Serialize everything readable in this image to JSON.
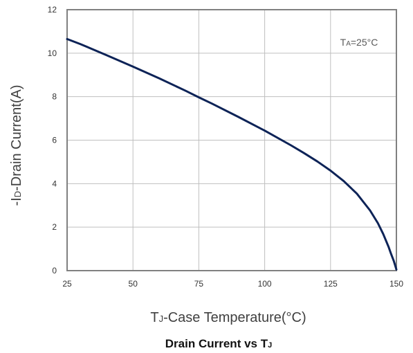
{
  "chart_data": {
    "type": "line",
    "title": "Drain Current vs T",
    "title_sub": "J",
    "xlabel": {
      "main": "T",
      "sub": "J",
      "rest": "-Case Temperature(°C)"
    },
    "ylabel": {
      "pre": "-I",
      "sub": "D",
      "rest": "-Drain Current(A)"
    },
    "annotation": {
      "main": "T",
      "sub": "A",
      "rest": "=25°C"
    },
    "xlim": [
      25,
      150
    ],
    "ylim": [
      0,
      12
    ],
    "x_ticks": [
      25,
      50,
      75,
      100,
      125,
      150
    ],
    "y_ticks": [
      0,
      2,
      4,
      6,
      8,
      10,
      12
    ],
    "grid": true,
    "series": [
      {
        "color": "#0d2357",
        "x": [
          25,
          30,
          40,
          50,
          60,
          70,
          75,
          80,
          90,
          100,
          110,
          115,
          120,
          125,
          130,
          135,
          140,
          143,
          145,
          147,
          148,
          149,
          149.5,
          150
        ],
        "y": [
          10.65,
          10.42,
          9.91,
          9.38,
          8.84,
          8.27,
          7.97,
          7.68,
          7.07,
          6.44,
          5.76,
          5.4,
          5.02,
          4.6,
          4.12,
          3.54,
          2.77,
          2.18,
          1.68,
          1.1,
          0.76,
          0.45,
          0.25,
          0.05
        ]
      }
    ]
  }
}
